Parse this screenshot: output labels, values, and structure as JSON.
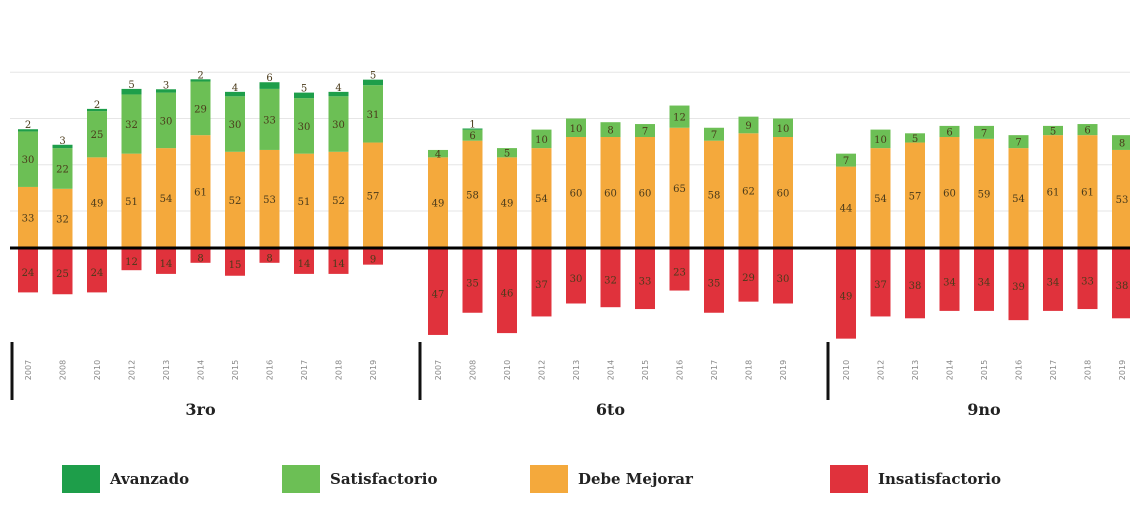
{
  "chart_data": {
    "type": "bar",
    "stacked": true,
    "diverging": true,
    "colors": {
      "avanzado": "#1e9e4a",
      "satisfactorio": "#6cbf55",
      "debe_mejorar": "#f4a93c",
      "insatisfactorio": "#e0323c"
    },
    "legend": {
      "placement": "bottom",
      "items": [
        {
          "key": "avanzado",
          "label": "Avanzado"
        },
        {
          "key": "satisfactorio",
          "label": "Satisfactorio"
        },
        {
          "key": "debe_mejorar",
          "label": "Debe Mejorar"
        },
        {
          "key": "insatisfactorio",
          "label": "Insatisfactorio"
        }
      ]
    },
    "panels": [
      {
        "label": "3ro",
        "categories": [
          "2007",
          "2008",
          "2010",
          "2012",
          "2013",
          "2014",
          "2015",
          "2016",
          "2017",
          "2018",
          "2019"
        ],
        "avanzado": [
          2,
          3,
          2,
          5,
          3,
          2,
          4,
          6,
          5,
          4,
          5
        ],
        "satisfactorio": [
          30,
          22,
          25,
          32,
          30,
          29,
          30,
          33,
          30,
          30,
          31
        ],
        "debe_mejorar": [
          33,
          32,
          49,
          51,
          54,
          61,
          52,
          53,
          51,
          52,
          57
        ],
        "insatisfactorio": [
          24,
          25,
          24,
          12,
          14,
          8,
          15,
          8,
          14,
          14,
          9
        ]
      },
      {
        "label": "6to",
        "categories": [
          "2007",
          "2008",
          "2010",
          "2012",
          "2013",
          "2014",
          "2015",
          "2016",
          "2017",
          "2018",
          "2019"
        ],
        "avanzado": [
          0,
          1,
          0,
          0,
          0,
          0,
          0,
          0,
          0,
          0,
          0
        ],
        "satisfactorio": [
          4,
          6,
          5,
          10,
          10,
          8,
          7,
          12,
          7,
          9,
          10
        ],
        "debe_mejorar": [
          49,
          58,
          49,
          54,
          60,
          60,
          60,
          65,
          58,
          62,
          60
        ],
        "insatisfactorio": [
          47,
          35,
          46,
          37,
          30,
          32,
          33,
          23,
          35,
          29,
          30
        ]
      },
      {
        "label": "9no",
        "categories": [
          "2010",
          "2012",
          "2013",
          "2014",
          "2015",
          "2016",
          "2017",
          "2018",
          "2019"
        ],
        "avanzado": [
          0,
          0,
          0,
          0,
          0,
          0,
          0,
          0,
          0
        ],
        "satisfactorio": [
          7,
          10,
          5,
          6,
          7,
          7,
          5,
          6,
          8
        ],
        "debe_mejorar": [
          44,
          54,
          57,
          60,
          59,
          54,
          61,
          61,
          53
        ],
        "insatisfactorio": [
          49,
          37,
          38,
          34,
          34,
          39,
          34,
          33,
          38
        ]
      }
    ],
    "ylim": [
      -40,
      100
    ],
    "grid": true
  }
}
